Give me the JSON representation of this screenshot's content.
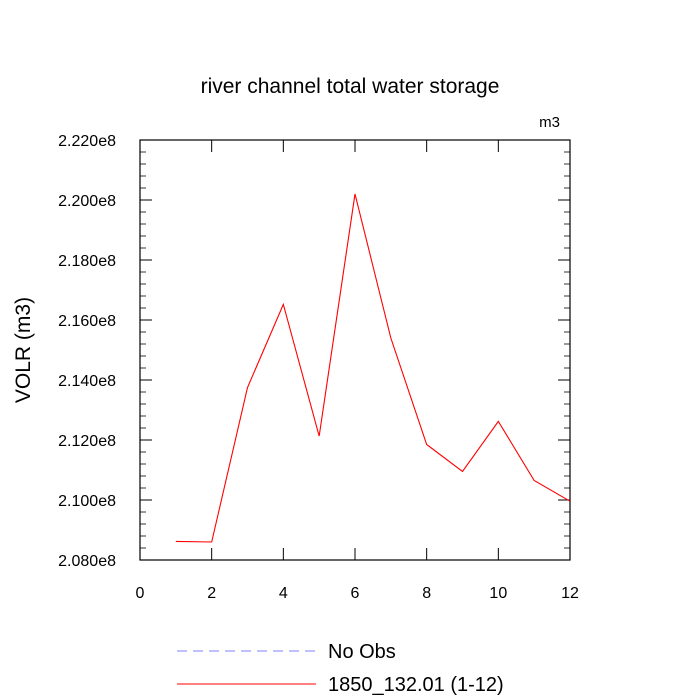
{
  "chart_data": {
    "type": "line",
    "title": "river channel total water storage",
    "units_label": "m3",
    "ylabel": "VOLR  (m3)",
    "xlabel": "",
    "xlim": [
      0,
      12
    ],
    "ylim": [
      208000000,
      222000000
    ],
    "x_ticks": [
      0,
      2,
      4,
      6,
      8,
      10,
      12
    ],
    "x_tick_labels": [
      "0",
      "2",
      "4",
      "6",
      "8",
      "10",
      "12"
    ],
    "y_ticks": [
      208000000,
      210000000,
      212000000,
      214000000,
      216000000,
      218000000,
      220000000,
      222000000
    ],
    "y_tick_labels": [
      "2.080e8",
      "2.100e8",
      "2.120e8",
      "2.140e8",
      "2.160e8",
      "2.180e8",
      "2.200e8",
      "2.220e8"
    ],
    "grid": false,
    "legend_position": "bottom",
    "series": [
      {
        "name": "No Obs",
        "color": "#8080ff",
        "dash": "dashed",
        "x": [],
        "y": []
      },
      {
        "name": "1850_132.01 (1-12)",
        "color": "#ff0000",
        "dash": "solid",
        "x": [
          1,
          2,
          3,
          4,
          5,
          6,
          7,
          8,
          9,
          10,
          11,
          12
        ],
        "y": [
          208620000,
          208600000,
          213750000,
          216520000,
          212130000,
          220200000,
          215400000,
          211850000,
          210950000,
          212620000,
          210650000,
          209960000
        ]
      }
    ]
  }
}
